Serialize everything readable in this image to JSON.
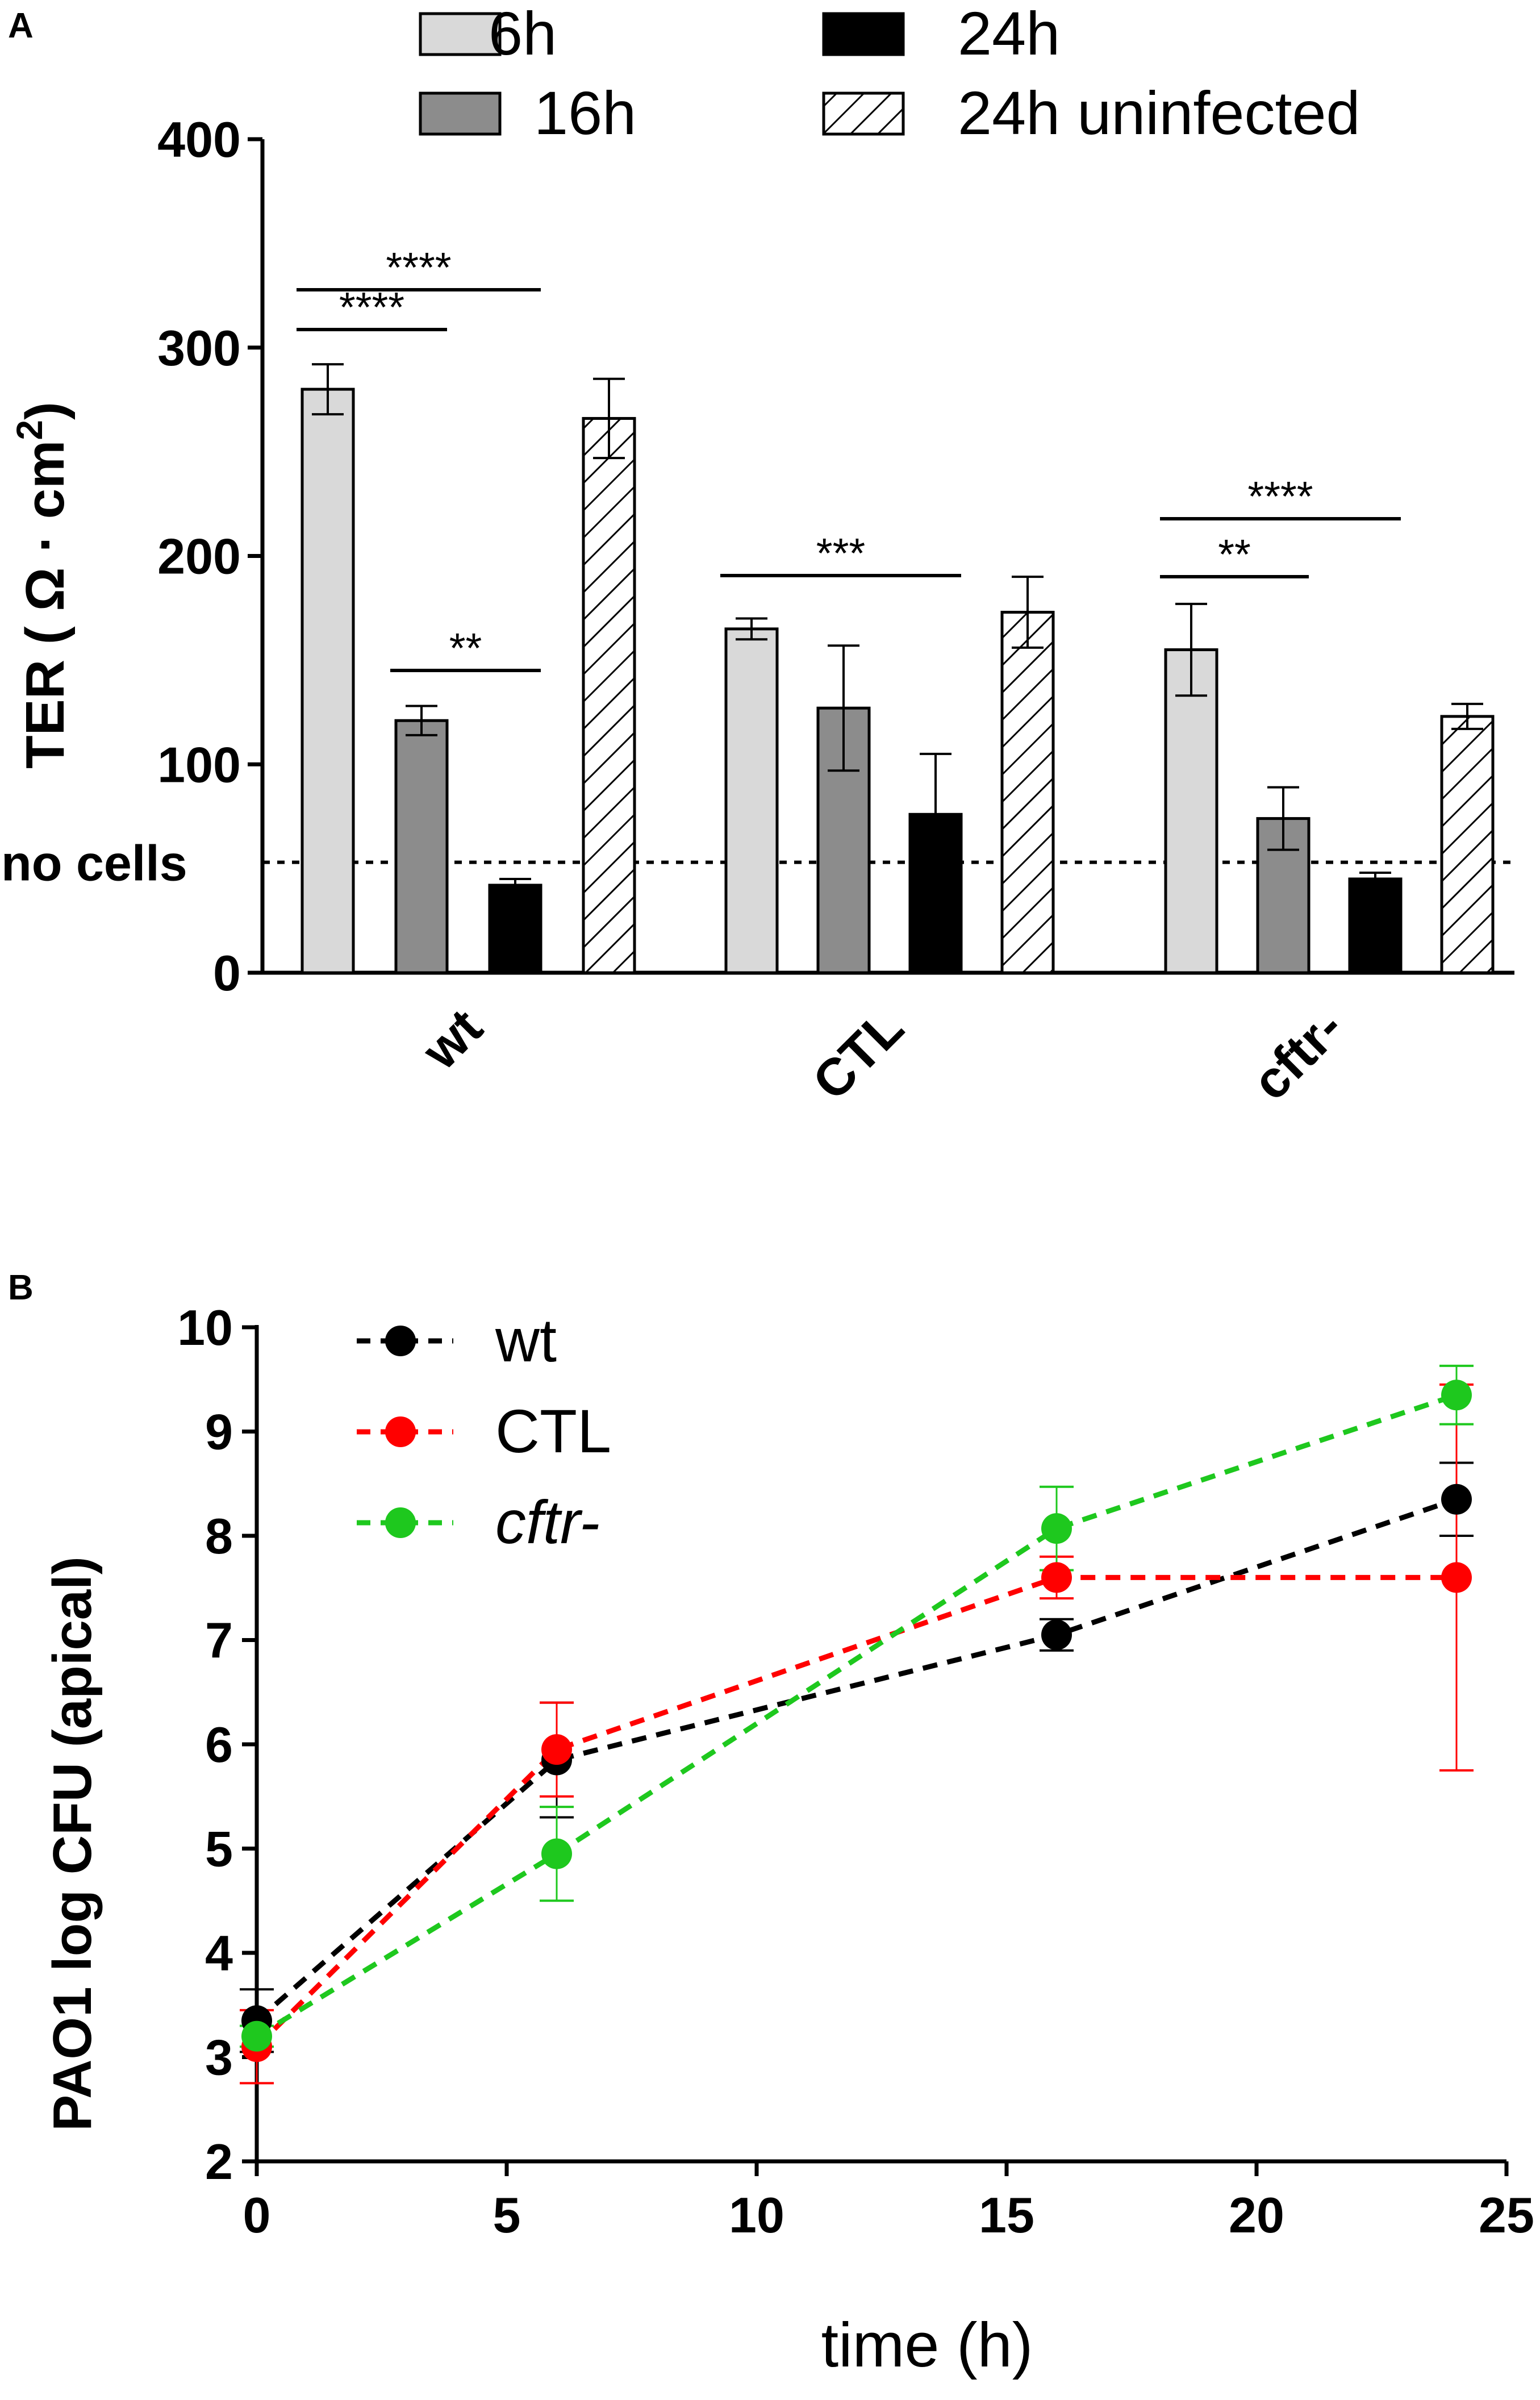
{
  "chart_data": [
    {
      "panel": "A",
      "type": "bar",
      "ylabel": "TER ( Ω · cm2)",
      "ylabel_parts": {
        "main": "TER ( Ω  · cm",
        "sup": "2",
        "close": ")"
      },
      "ylim": [
        0,
        400
      ],
      "yticks": [
        "0",
        "100",
        "200",
        "300",
        "400"
      ],
      "categories": [
        "wt",
        "CTL",
        "cftr-"
      ],
      "series": [
        {
          "name": "6h",
          "fill": "#d9d9d9",
          "hatch": false,
          "values": [
            280,
            165,
            155
          ],
          "errors": [
            12,
            5,
            22
          ]
        },
        {
          "name": "16h",
          "fill": "#8c8c8c",
          "hatch": false,
          "values": [
            121,
            127,
            74
          ],
          "errors": [
            7,
            30,
            15
          ]
        },
        {
          "name": "24h",
          "fill": "#000000",
          "hatch": false,
          "values": [
            42,
            76,
            45
          ],
          "errors": [
            3,
            29,
            3
          ]
        },
        {
          "name": "24h uninfected",
          "fill": "#ffffff",
          "hatch": true,
          "values": [
            266,
            173,
            123
          ],
          "errors": [
            19,
            17,
            6
          ]
        }
      ],
      "reference_line": {
        "label": "no cells",
        "value": 53
      },
      "significance": [
        {
          "label": "****",
          "category": 0,
          "from": 0,
          "to": 2
        },
        {
          "label": "****",
          "category": 0,
          "from": 0,
          "to": 1
        },
        {
          "label": "**",
          "category": 0,
          "from": 1,
          "to": 2
        },
        {
          "label": "***",
          "category": 1,
          "from": 0,
          "to": 2
        },
        {
          "label": "**",
          "category": 2,
          "from": 0,
          "to": 1
        },
        {
          "label": "****",
          "category": 2,
          "from": 0,
          "to": 2
        }
      ],
      "legend": [
        "6h",
        "16h",
        "24h",
        "24h uninfected"
      ],
      "legend_display": [
        "  6h",
        "16h",
        "24h",
        "24h uninfected"
      ]
    },
    {
      "panel": "B",
      "type": "line",
      "xlabel": "time (h)",
      "ylabel": "PAO1 log CFU (apical)",
      "xlim": [
        0,
        25
      ],
      "ylim": [
        2,
        10
      ],
      "xticks": [
        "0",
        "5",
        "10",
        "15",
        "20",
        "25"
      ],
      "yticks": [
        "2",
        "3",
        "4",
        "5",
        "6",
        "7",
        "8",
        "9",
        "10"
      ],
      "x": [
        0,
        6,
        16,
        24
      ],
      "series": [
        {
          "name": "wt",
          "color": "#000000",
          "italic": false,
          "values": [
            3.35,
            5.85,
            7.05,
            8.35
          ],
          "errors": [
            0.3,
            0.55,
            0.15,
            0.35
          ]
        },
        {
          "name": "CTL",
          "color": "#ff0000",
          "italic": false,
          "values": [
            3.1,
            5.95,
            7.6,
            7.6
          ],
          "errors": [
            0.35,
            0.45,
            0.2,
            1.85
          ]
        },
        {
          "name": "cftr-",
          "color": "#1ec81e",
          "italic": true,
          "values": [
            3.2,
            4.95,
            8.07,
            9.35
          ],
          "errors": [
            0.1,
            0.45,
            0.4,
            0.28
          ]
        }
      ],
      "legend": [
        "wt",
        "CTL",
        "cftr-"
      ]
    }
  ],
  "panel_labels": [
    "A",
    "B"
  ]
}
